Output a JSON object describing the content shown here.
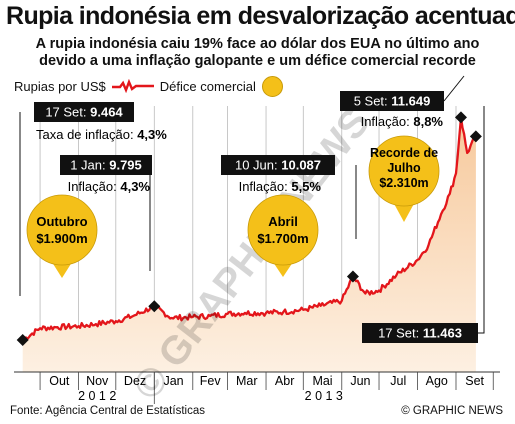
{
  "header": {
    "title": "Rupia indonésia em desvalorização acentuada",
    "subtitle_line1": "A rupia indonésia caiu 19% face ao dólar dos EUA no último ano",
    "subtitle_line2": "devido a uma inflação galopante e um défice comercial recorde"
  },
  "legend": {
    "rupiah": "Rupias por US$",
    "deficit": "Défice comercial"
  },
  "footer": {
    "source": "Fonte: Agência Central de Estatísticas",
    "credit": "© GRAPHIC NEWS"
  },
  "watermark": "© GRAPHIC NEWS",
  "colors": {
    "line": "#e3161b",
    "area_top": "#f7c99c",
    "area_bottom": "#fdf0e2",
    "bubble": "#f4c019",
    "callout_bg": "#111111",
    "grid": "#bbbbbb"
  },
  "chart_data": {
    "type": "line",
    "series": [
      {
        "name": "Rupias por US$",
        "points": [
          [
            "2012-09-17",
            9464
          ],
          [
            "2012-10-01",
            9580
          ],
          [
            "2012-10-15",
            9590
          ],
          [
            "2012-11-01",
            9600
          ],
          [
            "2012-11-15",
            9620
          ],
          [
            "2012-12-01",
            9650
          ],
          [
            "2012-12-15",
            9700
          ],
          [
            "2013-01-01",
            9795
          ],
          [
            "2013-01-15",
            9680
          ],
          [
            "2013-02-01",
            9690
          ],
          [
            "2013-02-15",
            9700
          ],
          [
            "2013-03-01",
            9720
          ],
          [
            "2013-03-15",
            9730
          ],
          [
            "2013-04-01",
            9730
          ],
          [
            "2013-04-15",
            9740
          ],
          [
            "2013-05-01",
            9760
          ],
          [
            "2013-05-15",
            9800
          ],
          [
            "2013-06-01",
            9850
          ],
          [
            "2013-06-10",
            10087
          ],
          [
            "2013-06-20",
            9920
          ],
          [
            "2013-07-01",
            9950
          ],
          [
            "2013-07-15",
            10100
          ],
          [
            "2013-08-01",
            10250
          ],
          [
            "2013-08-10",
            10400
          ],
          [
            "2013-08-20",
            10700
          ],
          [
            "2013-08-27",
            10900
          ],
          [
            "2013-09-01",
            11100
          ],
          [
            "2013-09-05",
            11649
          ],
          [
            "2013-09-10",
            11300
          ],
          [
            "2013-09-17",
            11463
          ]
        ]
      }
    ],
    "deficit_bubbles": [
      {
        "month": "Outubro",
        "value": "$1.900m",
        "date": "2012-10-15"
      },
      {
        "month": "Abril",
        "value": "$1.700m",
        "date": "2013-04-15"
      },
      {
        "month": "Recorde de Julho",
        "value": "$2.310m",
        "date": "2013-07-15"
      }
    ],
    "callouts": [
      {
        "date_label": "17 Set:",
        "value": "9.464",
        "inflation_label": "Taxa de inflação:",
        "inflation": "4,3%",
        "date": "2012-09-17",
        "rate": 9464
      },
      {
        "date_label": "1 Jan:",
        "value": "9.795",
        "inflation_label": "Inflação:",
        "inflation": "4,3%",
        "date": "2013-01-01",
        "rate": 9795
      },
      {
        "date_label": "10 Jun:",
        "value": "10.087",
        "inflation_label": "Inflação:",
        "inflation": "5,5%",
        "date": "2013-06-10",
        "rate": 10087
      },
      {
        "date_label": "5 Set:",
        "value": "11.649",
        "inflation_label": "Inflação:",
        "inflation": "8,8%",
        "date": "2013-09-05",
        "rate": 11649
      },
      {
        "date_label": "17 Set:",
        "value": "11.463",
        "inflation_label": "",
        "inflation": "",
        "date": "2013-09-17",
        "rate": 11463
      }
    ],
    "x_ticks": [
      "Out",
      "Nov",
      "Dez",
      "Jan",
      "Fev",
      "Mar",
      "Abr",
      "Mai",
      "Jun",
      "Jul",
      "Ago",
      "Set"
    ],
    "x_years": [
      "2012",
      "2013"
    ],
    "xlim": [
      "2012-09-10",
      "2013-09-30"
    ],
    "ylim": [
      9150,
      11800
    ],
    "grid": true
  }
}
